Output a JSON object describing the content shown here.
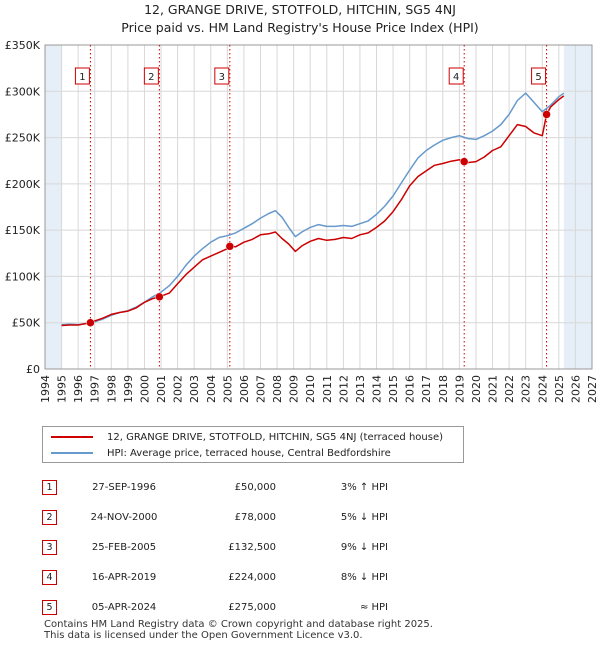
{
  "title_line1": "12, GRANGE DRIVE, STOTFOLD, HITCHIN, SG5 4NJ",
  "title_line2": "Price paid vs. HM Land Registry's House Price Index (HPI)",
  "colors": {
    "price": "#cc0000",
    "hpi": "#6699cc",
    "grid": "#d8d8d8",
    "band": "#e6eef7"
  },
  "chart_data": {
    "type": "line",
    "title": "Price paid vs. HM Land Registry's House Price Index (HPI)",
    "xlabel": "",
    "ylabel": "",
    "xlim": [
      1994,
      2027
    ],
    "ylim": [
      0,
      350000
    ],
    "x_ticks": [
      "1994",
      "1995",
      "1996",
      "1997",
      "1998",
      "1999",
      "2000",
      "2001",
      "2002",
      "2003",
      "2004",
      "2005",
      "2006",
      "2007",
      "2008",
      "2009",
      "2010",
      "2011",
      "2012",
      "2013",
      "2014",
      "2015",
      "2016",
      "2017",
      "2018",
      "2019",
      "2020",
      "2021",
      "2022",
      "2023",
      "2024",
      "2025",
      "2026",
      "2027"
    ],
    "y_ticks": [
      {
        "value": 0,
        "label": "£0"
      },
      {
        "value": 50000,
        "label": "£50K"
      },
      {
        "value": 100000,
        "label": "£100K"
      },
      {
        "value": 150000,
        "label": "£150K"
      },
      {
        "value": 200000,
        "label": "£200K"
      },
      {
        "value": 250000,
        "label": "£250K"
      },
      {
        "value": 300000,
        "label": "£300K"
      },
      {
        "value": 350000,
        "label": "£350K"
      }
    ],
    "shaded_ranges": [
      [
        1994.0,
        1995.0
      ],
      [
        2025.3,
        2027.0
      ]
    ],
    "markers": [
      {
        "id": "1",
        "x": 1996.74,
        "y": 50000
      },
      {
        "id": "2",
        "x": 2000.9,
        "y": 78000
      },
      {
        "id": "3",
        "x": 2005.15,
        "y": 132500
      },
      {
        "id": "4",
        "x": 2019.29,
        "y": 224000
      },
      {
        "id": "5",
        "x": 2024.26,
        "y": 275000
      }
    ],
    "series": [
      {
        "name": "12, GRANGE DRIVE, STOTFOLD, HITCHIN, SG5 4NJ (terraced house)",
        "color": "#cc0000",
        "x": [
          1995.0,
          1995.5,
          1996.0,
          1996.74,
          1997.0,
          1997.5,
          1998.0,
          1998.5,
          1999.0,
          1999.5,
          2000.0,
          2000.5,
          2000.9,
          2001.5,
          2002.0,
          2002.5,
          2003.0,
          2003.5,
          2004.0,
          2004.5,
          2005.0,
          2005.15,
          2005.5,
          2006.0,
          2006.5,
          2007.0,
          2007.5,
          2007.9,
          2008.3,
          2008.7,
          2009.1,
          2009.5,
          2010.0,
          2010.5,
          2011.0,
          2011.5,
          2012.0,
          2012.5,
          2013.0,
          2013.5,
          2014.0,
          2014.5,
          2015.0,
          2015.5,
          2016.0,
          2016.5,
          2017.0,
          2017.5,
          2018.0,
          2018.5,
          2019.0,
          2019.29,
          2019.5,
          2020.0,
          2020.5,
          2021.0,
          2021.5,
          2022.0,
          2022.5,
          2023.0,
          2023.5,
          2024.0,
          2024.26,
          2024.5,
          2025.0,
          2025.3
        ],
        "y": [
          47000,
          47500,
          47500,
          50000,
          52000,
          55000,
          59000,
          61000,
          62500,
          66000,
          72000,
          76000,
          78000,
          82000,
          92000,
          102000,
          110000,
          118000,
          122000,
          126000,
          130000,
          132500,
          132000,
          137000,
          140000,
          145000,
          146000,
          148000,
          141000,
          135000,
          127000,
          133000,
          138000,
          141000,
          139000,
          140000,
          142000,
          141000,
          145000,
          147000,
          153000,
          160000,
          170000,
          183000,
          198000,
          208000,
          214000,
          220000,
          222000,
          224500,
          226000,
          224000,
          223000,
          224000,
          229000,
          236000,
          240000,
          252000,
          264000,
          262000,
          255000,
          252000,
          275000,
          283000,
          291000,
          295000
        ]
      },
      {
        "name": "HPI: Average price, terraced house, Central Bedfordshire",
        "color": "#6699cc",
        "x": [
          1995.0,
          1995.5,
          1996.0,
          1996.5,
          1997.0,
          1997.5,
          1998.0,
          1998.5,
          1999.0,
          1999.5,
          2000.0,
          2000.5,
          2001.0,
          2001.5,
          2002.0,
          2002.5,
          2003.0,
          2003.5,
          2004.0,
          2004.5,
          2005.0,
          2005.5,
          2006.0,
          2006.5,
          2007.0,
          2007.5,
          2007.9,
          2008.3,
          2008.7,
          2009.1,
          2009.5,
          2010.0,
          2010.5,
          2011.0,
          2011.5,
          2012.0,
          2012.5,
          2013.0,
          2013.5,
          2014.0,
          2014.5,
          2015.0,
          2015.5,
          2016.0,
          2016.5,
          2017.0,
          2017.5,
          2018.0,
          2018.5,
          2019.0,
          2019.5,
          2020.0,
          2020.5,
          2021.0,
          2021.5,
          2022.0,
          2022.5,
          2023.0,
          2023.5,
          2024.0,
          2024.5,
          2025.0,
          2025.3
        ],
        "y": [
          48000,
          48500,
          48000,
          49000,
          51000,
          54000,
          58000,
          61000,
          63000,
          67000,
          72000,
          78000,
          83000,
          90000,
          100000,
          112000,
          122000,
          130000,
          137000,
          142000,
          144000,
          147000,
          152000,
          157000,
          163000,
          168000,
          171000,
          164000,
          153000,
          143000,
          148000,
          153000,
          156000,
          154000,
          154000,
          155000,
          154000,
          157000,
          160000,
          167000,
          176000,
          187000,
          201000,
          215000,
          228000,
          236000,
          242000,
          247000,
          250000,
          252000,
          249000,
          248000,
          252000,
          257000,
          264000,
          275000,
          290000,
          298000,
          288000,
          278000,
          285000,
          294000,
          298000
        ]
      }
    ]
  },
  "legend": {
    "price_label": "12, GRANGE DRIVE, STOTFOLD, HITCHIN, SG5 4NJ (terraced house)",
    "hpi_label": "HPI: Average price, terraced house, Central Bedfordshire"
  },
  "sales": [
    {
      "num": "1",
      "date": "27-SEP-1996",
      "price": "£50,000",
      "hpi": "3% ↑ HPI"
    },
    {
      "num": "2",
      "date": "24-NOV-2000",
      "price": "£78,000",
      "hpi": "5% ↓ HPI"
    },
    {
      "num": "3",
      "date": "25-FEB-2005",
      "price": "£132,500",
      "hpi": "9% ↓ HPI"
    },
    {
      "num": "4",
      "date": "16-APR-2019",
      "price": "£224,000",
      "hpi": "8% ↓ HPI"
    },
    {
      "num": "5",
      "date": "05-APR-2024",
      "price": "£275,000",
      "hpi": "≈ HPI"
    }
  ],
  "footer_line1": "Contains HM Land Registry data © Crown copyright and database right 2025.",
  "footer_line2": "This data is licensed under the Open Government Licence v3.0."
}
